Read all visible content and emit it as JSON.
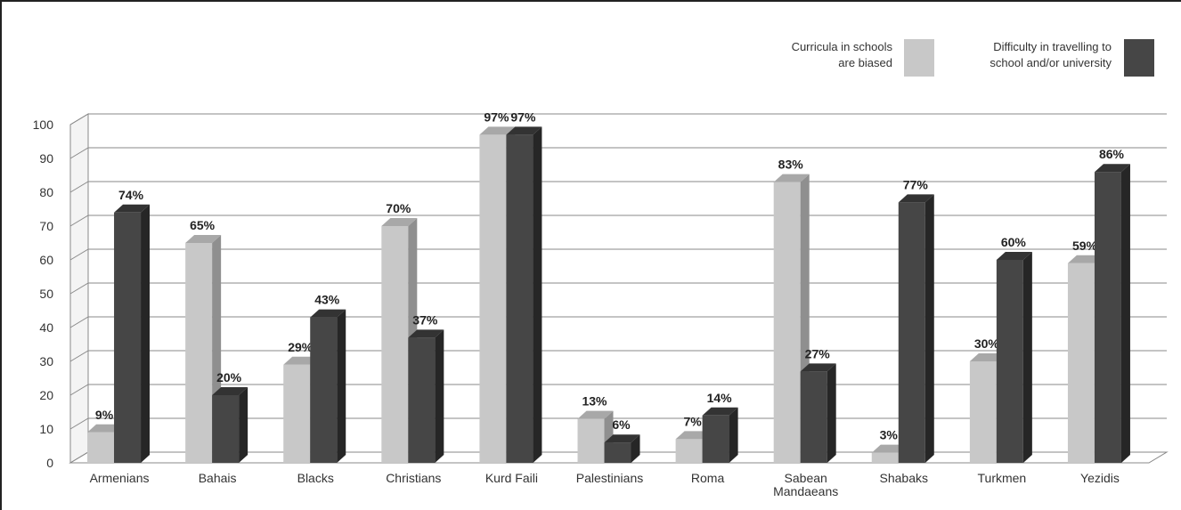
{
  "chart_data": {
    "type": "bar",
    "categories": [
      "Armenians",
      "Bahais",
      "Blacks",
      "Christians",
      "Kurd Faili",
      "Palestinians",
      "Roma",
      "Sabean Mandaeans",
      "Shabaks",
      "Turkmen",
      "Yezidis"
    ],
    "category_lines": [
      [
        "Armenians"
      ],
      [
        "Bahais"
      ],
      [
        "Blacks"
      ],
      [
        "Christians"
      ],
      [
        "Kurd Faili"
      ],
      [
        "Palestinians"
      ],
      [
        "Roma"
      ],
      [
        "Sabean",
        "Mandaeans"
      ],
      [
        "Shabaks"
      ],
      [
        "Turkmen"
      ],
      [
        "Yezidis"
      ]
    ],
    "series": [
      {
        "name": "Curricula in schools are biased",
        "values": [
          9,
          65,
          29,
          70,
          97,
          13,
          7,
          83,
          3,
          30,
          59
        ],
        "color": "#c8c8c8"
      },
      {
        "name": "Difficulty in travelling to school and/or university",
        "values": [
          74,
          20,
          43,
          37,
          97,
          6,
          14,
          27,
          77,
          60,
          86
        ],
        "color": "#464646"
      }
    ],
    "data_label_suffix": "%",
    "ylim": [
      0,
      100
    ],
    "yticks": [
      "0",
      "10",
      "20",
      "30",
      "40",
      "50",
      "60",
      "70",
      "80",
      "90",
      "100"
    ],
    "grid": true,
    "style": "3d",
    "legend_position": "top-right"
  },
  "legend": {
    "items": [
      {
        "lines": [
          "Curricula in schools",
          "are biased"
        ],
        "color": "#c8c8c8"
      },
      {
        "lines": [
          "Difficulty in travelling to",
          "school and/or university"
        ],
        "color": "#464646"
      }
    ]
  }
}
